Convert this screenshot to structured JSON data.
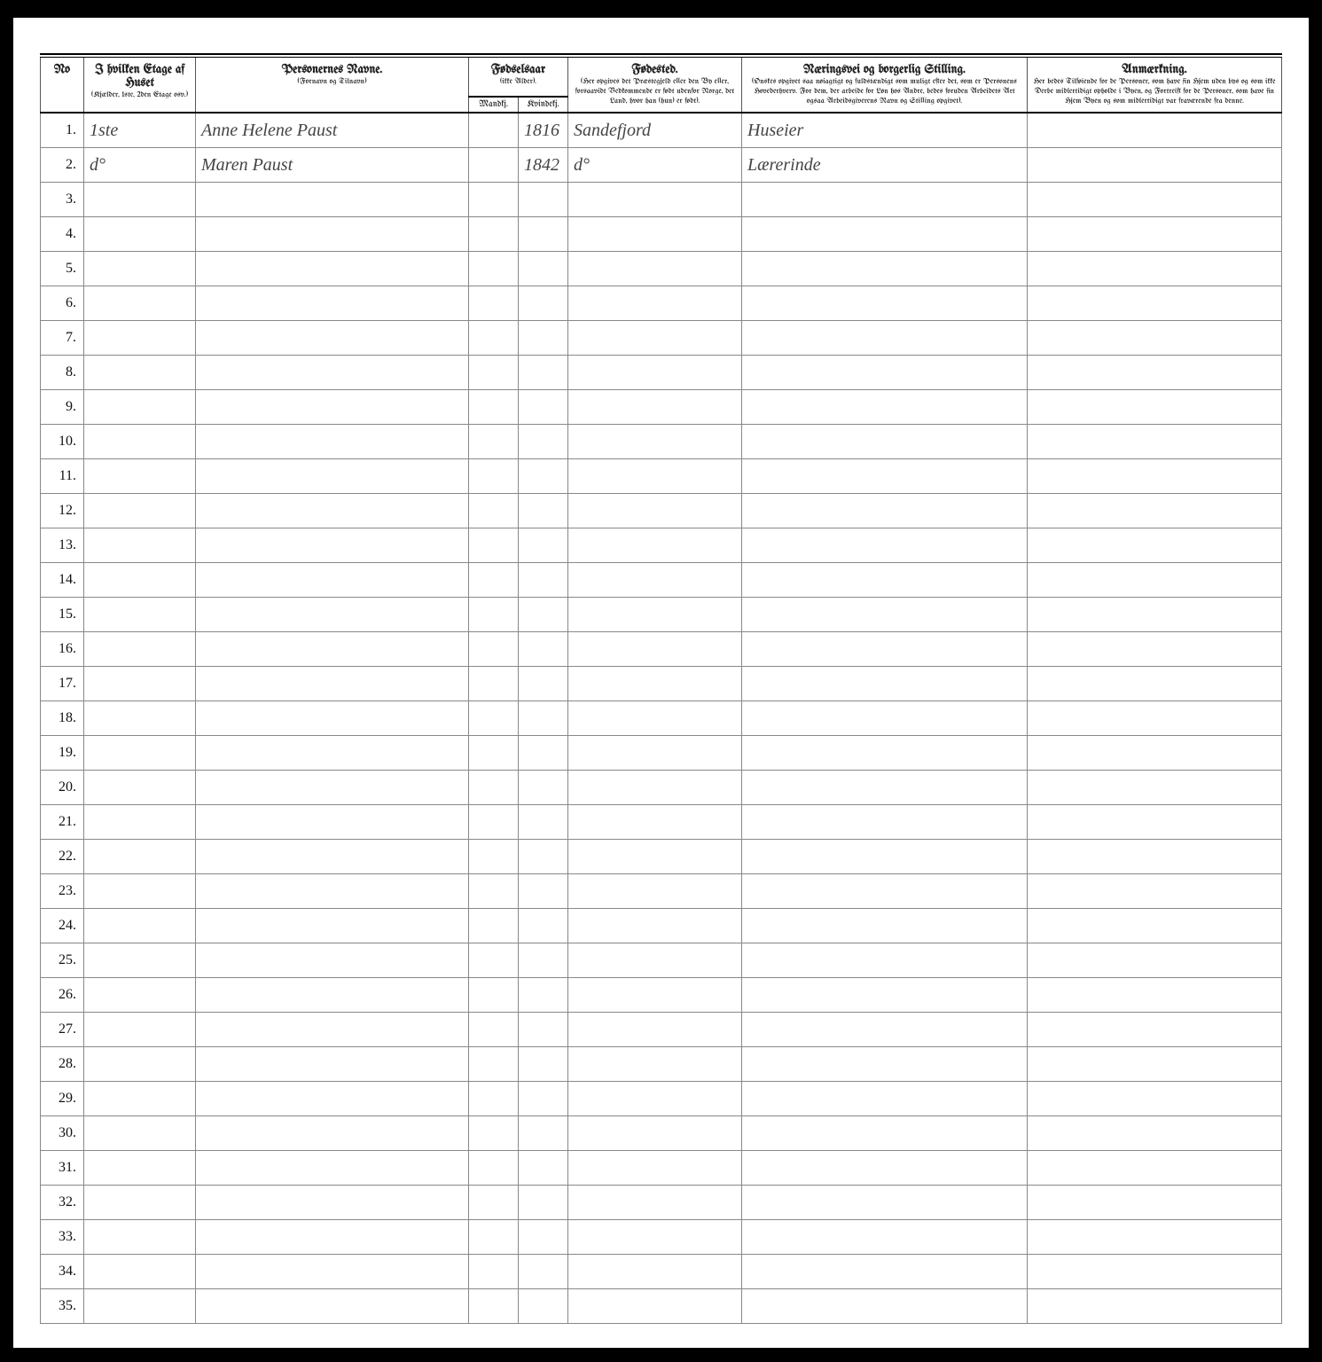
{
  "headers": {
    "no": "No",
    "etage_title": "I hvilken Etage af Huset",
    "etage_sub": "(Kjælder, 1ste, 2den Etage osv.)",
    "name_title": "Personernes Navne.",
    "name_sub": "(Fornavn og Tilnavn)",
    "year_title": "Fødselsaar",
    "year_sub": "(ikke Alder).",
    "year_m": "Mandkj.",
    "year_k": "Kvindekj.",
    "place_title": "Fødested.",
    "place_sub": "(Her opgives det Præstegjeld eller den By eller, forsaavidt Vedkommende er født udenfor Norge, det Land, hvor han (hun) er født).",
    "occ_title": "Næringsvei og borgerlig Stilling.",
    "occ_sub": "(Ønskes opgivet saa nøiagtigt og fuldstændigt som muligt efter det, som er Personens Hovederhverv. For dem, der arbeide for Løn hos Andre, bedes foruden Arbeidets Art ogsaa Arbeidsgiverens Navn og Stilling opgivet).",
    "note_title": "Anmærkning.",
    "note_sub": "Her bedes Tilføiende for de Personer, som have fin Hjem uden bys og som ikke Derbe midlertidigt opholde i Byen, og Fortreift for de Personer, som have fin Hjem Byen og som midlertidigt var fraværende fra denne."
  },
  "rows": [
    {
      "no": "1.",
      "etage": "1ste",
      "name": "Anne Helene Paust",
      "m": "",
      "k": "1816",
      "place": "Sandefjord",
      "occ": "Huseier",
      "note": ""
    },
    {
      "no": "2.",
      "etage": "d°",
      "name": "Maren Paust",
      "m": "",
      "k": "1842",
      "place": "d°",
      "occ": "Lærerinde",
      "note": ""
    },
    {
      "no": "3.",
      "etage": "",
      "name": "",
      "m": "",
      "k": "",
      "place": "",
      "occ": "",
      "note": ""
    },
    {
      "no": "4.",
      "etage": "",
      "name": "",
      "m": "",
      "k": "",
      "place": "",
      "occ": "",
      "note": ""
    },
    {
      "no": "5.",
      "etage": "",
      "name": "",
      "m": "",
      "k": "",
      "place": "",
      "occ": "",
      "note": ""
    },
    {
      "no": "6.",
      "etage": "",
      "name": "",
      "m": "",
      "k": "",
      "place": "",
      "occ": "",
      "note": ""
    },
    {
      "no": "7.",
      "etage": "",
      "name": "",
      "m": "",
      "k": "",
      "place": "",
      "occ": "",
      "note": ""
    },
    {
      "no": "8.",
      "etage": "",
      "name": "",
      "m": "",
      "k": "",
      "place": "",
      "occ": "",
      "note": ""
    },
    {
      "no": "9.",
      "etage": "",
      "name": "",
      "m": "",
      "k": "",
      "place": "",
      "occ": "",
      "note": ""
    },
    {
      "no": "10.",
      "etage": "",
      "name": "",
      "m": "",
      "k": "",
      "place": "",
      "occ": "",
      "note": ""
    },
    {
      "no": "11.",
      "etage": "",
      "name": "",
      "m": "",
      "k": "",
      "place": "",
      "occ": "",
      "note": ""
    },
    {
      "no": "12.",
      "etage": "",
      "name": "",
      "m": "",
      "k": "",
      "place": "",
      "occ": "",
      "note": ""
    },
    {
      "no": "13.",
      "etage": "",
      "name": "",
      "m": "",
      "k": "",
      "place": "",
      "occ": "",
      "note": ""
    },
    {
      "no": "14.",
      "etage": "",
      "name": "",
      "m": "",
      "k": "",
      "place": "",
      "occ": "",
      "note": ""
    },
    {
      "no": "15.",
      "etage": "",
      "name": "",
      "m": "",
      "k": "",
      "place": "",
      "occ": "",
      "note": ""
    },
    {
      "no": "16.",
      "etage": "",
      "name": "",
      "m": "",
      "k": "",
      "place": "",
      "occ": "",
      "note": ""
    },
    {
      "no": "17.",
      "etage": "",
      "name": "",
      "m": "",
      "k": "",
      "place": "",
      "occ": "",
      "note": ""
    },
    {
      "no": "18.",
      "etage": "",
      "name": "",
      "m": "",
      "k": "",
      "place": "",
      "occ": "",
      "note": ""
    },
    {
      "no": "19.",
      "etage": "",
      "name": "",
      "m": "",
      "k": "",
      "place": "",
      "occ": "",
      "note": ""
    },
    {
      "no": "20.",
      "etage": "",
      "name": "",
      "m": "",
      "k": "",
      "place": "",
      "occ": "",
      "note": ""
    },
    {
      "no": "21.",
      "etage": "",
      "name": "",
      "m": "",
      "k": "",
      "place": "",
      "occ": "",
      "note": ""
    },
    {
      "no": "22.",
      "etage": "",
      "name": "",
      "m": "",
      "k": "",
      "place": "",
      "occ": "",
      "note": ""
    },
    {
      "no": "23.",
      "etage": "",
      "name": "",
      "m": "",
      "k": "",
      "place": "",
      "occ": "",
      "note": ""
    },
    {
      "no": "24.",
      "etage": "",
      "name": "",
      "m": "",
      "k": "",
      "place": "",
      "occ": "",
      "note": ""
    },
    {
      "no": "25.",
      "etage": "",
      "name": "",
      "m": "",
      "k": "",
      "place": "",
      "occ": "",
      "note": ""
    },
    {
      "no": "26.",
      "etage": "",
      "name": "",
      "m": "",
      "k": "",
      "place": "",
      "occ": "",
      "note": ""
    },
    {
      "no": "27.",
      "etage": "",
      "name": "",
      "m": "",
      "k": "",
      "place": "",
      "occ": "",
      "note": ""
    },
    {
      "no": "28.",
      "etage": "",
      "name": "",
      "m": "",
      "k": "",
      "place": "",
      "occ": "",
      "note": ""
    },
    {
      "no": "29.",
      "etage": "",
      "name": "",
      "m": "",
      "k": "",
      "place": "",
      "occ": "",
      "note": ""
    },
    {
      "no": "30.",
      "etage": "",
      "name": "",
      "m": "",
      "k": "",
      "place": "",
      "occ": "",
      "note": ""
    },
    {
      "no": "31.",
      "etage": "",
      "name": "",
      "m": "",
      "k": "",
      "place": "",
      "occ": "",
      "note": ""
    },
    {
      "no": "32.",
      "etage": "",
      "name": "",
      "m": "",
      "k": "",
      "place": "",
      "occ": "",
      "note": ""
    },
    {
      "no": "33.",
      "etage": "",
      "name": "",
      "m": "",
      "k": "",
      "place": "",
      "occ": "",
      "note": ""
    },
    {
      "no": "34.",
      "etage": "",
      "name": "",
      "m": "",
      "k": "",
      "place": "",
      "occ": "",
      "note": ""
    },
    {
      "no": "35.",
      "etage": "",
      "name": "",
      "m": "",
      "k": "",
      "place": "",
      "occ": "",
      "note": ""
    }
  ],
  "colors": {
    "page_bg": "#ffffff",
    "outer_bg": "#000000",
    "rule": "#000000",
    "grid": "#888888",
    "ink": "#444444"
  }
}
